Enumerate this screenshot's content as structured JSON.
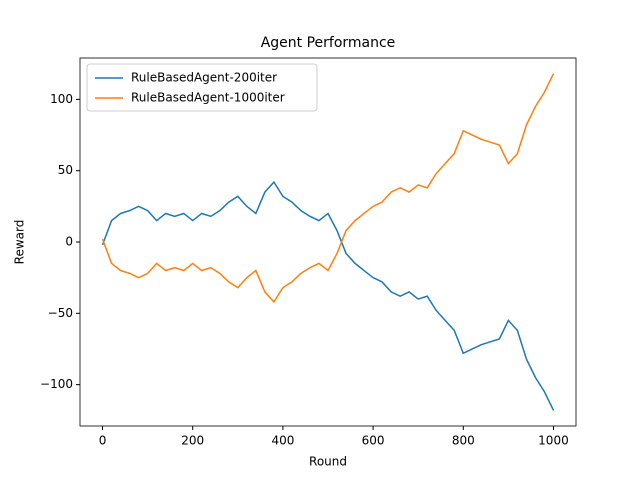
{
  "chart_data": {
    "type": "line",
    "title": "Agent Performance",
    "x_label": "Round",
    "y_label": "Reward",
    "x": [
      0,
      20,
      40,
      60,
      80,
      100,
      120,
      140,
      160,
      180,
      200,
      220,
      240,
      260,
      280,
      300,
      320,
      340,
      360,
      380,
      400,
      420,
      440,
      460,
      480,
      500,
      520,
      540,
      560,
      580,
      600,
      620,
      640,
      660,
      680,
      700,
      720,
      740,
      760,
      780,
      800,
      820,
      840,
      860,
      880,
      900,
      920,
      940,
      960,
      980,
      1000
    ],
    "series": [
      {
        "name": "RuleBasedAgent-200iter",
        "color": "#1f77b4",
        "values": [
          -2,
          15,
          20,
          22,
          25,
          22,
          15,
          20,
          18,
          20,
          15,
          20,
          18,
          22,
          28,
          32,
          25,
          20,
          35,
          42,
          32,
          28,
          22,
          18,
          15,
          20,
          8,
          -8,
          -15,
          -20,
          -25,
          -28,
          -35,
          -38,
          -35,
          -40,
          -38,
          -48,
          -55,
          -62,
          -78,
          -75,
          -72,
          -70,
          -68,
          -55,
          -62,
          -82,
          -95,
          -105,
          -118
        ]
      },
      {
        "name": "RuleBasedAgent-1000iter",
        "color": "#ff7f0e",
        "values": [
          2,
          -15,
          -20,
          -22,
          -25,
          -22,
          -15,
          -20,
          -18,
          -20,
          -15,
          -20,
          -18,
          -22,
          -28,
          -32,
          -25,
          -20,
          -35,
          -42,
          -32,
          -28,
          -22,
          -18,
          -15,
          -20,
          -8,
          8,
          15,
          20,
          25,
          28,
          35,
          38,
          35,
          40,
          38,
          48,
          55,
          62,
          78,
          75,
          72,
          70,
          68,
          55,
          62,
          82,
          95,
          105,
          118
        ]
      }
    ],
    "xlim": [
      -50,
      1050
    ],
    "ylim": [
      -129,
      129
    ],
    "xticks": [
      0,
      200,
      400,
      600,
      800,
      1000
    ],
    "yticks": [
      {
        "value": -100,
        "label": "−100"
      },
      {
        "value": -50,
        "label": "−50"
      },
      0,
      50,
      100
    ],
    "legend": "upper left"
  }
}
